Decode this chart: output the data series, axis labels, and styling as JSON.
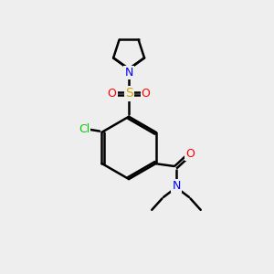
{
  "background_color": "#eeeeee",
  "bond_color": "#000000",
  "atom_colors": {
    "N": "#0000ff",
    "O": "#ff0000",
    "S": "#ccaa00",
    "Cl": "#00cc00",
    "C": "#000000"
  }
}
